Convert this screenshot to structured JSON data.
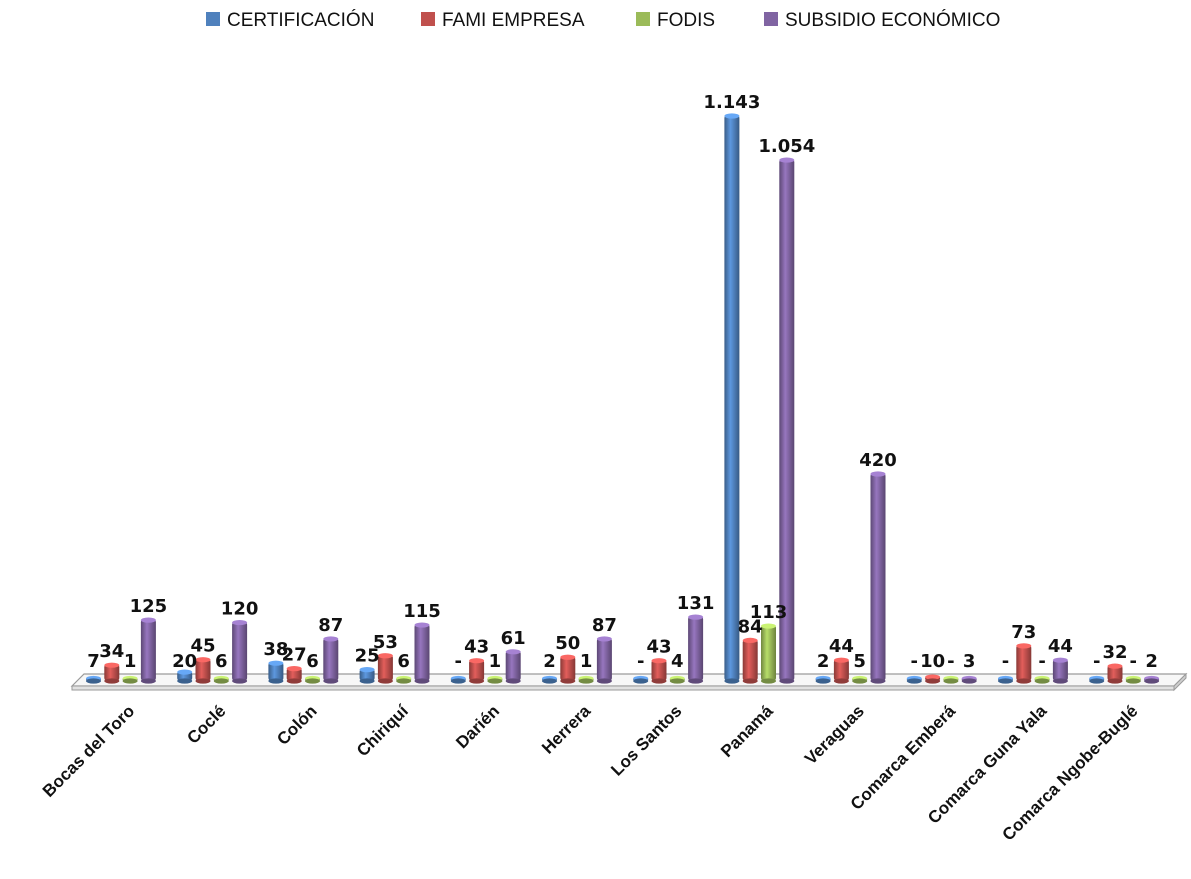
{
  "colors": {
    "CERTIFICACIÓN": "#4f81bd",
    "FAMI EMPRESA": "#c0504d",
    "FODIS": "#9bbb59",
    "SUBSIDIO ECONÓMICO": "#8064a2"
  },
  "chart_data": {
    "type": "bar",
    "title": "",
    "xlabel": "",
    "ylabel": "",
    "legend_position": "top",
    "grid": false,
    "ylim": [
      0,
      1200
    ],
    "categories": [
      "Bocas del Toro",
      "Coclé",
      "Colón",
      "Chiriquí",
      "Darién",
      "Herrera",
      "Los Santos",
      "Panamá",
      "Veraguas",
      "Comarca Emberá",
      "Comarca Guna Yala",
      "Comarca Ngobe-Buglé"
    ],
    "series": [
      {
        "name": "CERTIFICACIÓN",
        "values": [
          7,
          20,
          38,
          25,
          0,
          2,
          0,
          1143,
          2,
          0,
          0,
          0
        ],
        "labels": [
          "7",
          "20",
          "38",
          "25",
          "-",
          "2",
          "-",
          "1.143",
          "2",
          "-",
          "-",
          "-"
        ]
      },
      {
        "name": "FAMI EMPRESA",
        "values": [
          34,
          45,
          27,
          53,
          43,
          50,
          43,
          84,
          44,
          10,
          73,
          32
        ],
        "labels": [
          "34",
          "45",
          "27",
          "53",
          "43",
          "50",
          "43",
          "84",
          "44",
          "10",
          "73",
          "32"
        ]
      },
      {
        "name": "FODIS",
        "values": [
          1,
          6,
          6,
          6,
          1,
          1,
          4,
          113,
          5,
          0,
          0,
          0
        ],
        "labels": [
          "1",
          "6",
          "6",
          "6",
          "1",
          "1",
          "4",
          "113",
          "5",
          "-",
          "-",
          "-"
        ]
      },
      {
        "name": "SUBSIDIO ECONÓMICO",
        "values": [
          125,
          120,
          87,
          115,
          61,
          87,
          131,
          1054,
          420,
          3,
          44,
          2
        ],
        "labels": [
          "125",
          "120",
          "87",
          "115",
          "61",
          "87",
          "131",
          "1.054",
          "420",
          "3",
          "44",
          "2"
        ]
      }
    ]
  }
}
